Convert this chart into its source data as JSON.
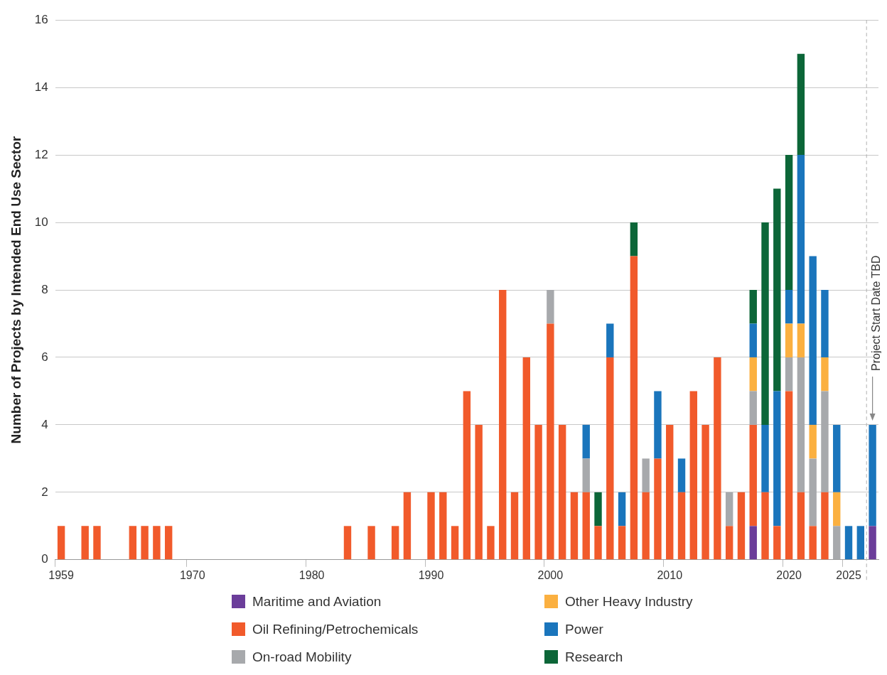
{
  "chart_data": {
    "type": "bar",
    "stacked": true,
    "ylabel": "Number of Projects by Intended End Use Sector",
    "categories": [
      "1959",
      null,
      null,
      null,
      null,
      null,
      null,
      null,
      null,
      null,
      null,
      "1970",
      null,
      null,
      null,
      null,
      null,
      null,
      null,
      null,
      null,
      "1980",
      null,
      null,
      null,
      null,
      null,
      null,
      null,
      null,
      null,
      "1990",
      null,
      null,
      null,
      null,
      null,
      null,
      null,
      null,
      null,
      "2000",
      null,
      null,
      null,
      null,
      null,
      null,
      null,
      null,
      null,
      "2010",
      null,
      null,
      null,
      null,
      null,
      null,
      null,
      null,
      null,
      "2020",
      null,
      null,
      null,
      null,
      "2025",
      null,
      null
    ],
    "ylim": [
      0,
      16
    ],
    "yticks": [
      0,
      2,
      4,
      6,
      8,
      10,
      12,
      14,
      16
    ],
    "grid": "y",
    "legend": "bottom",
    "annotations": [
      "Project Start Date TBD"
    ],
    "series": [
      {
        "name": "Maritime and Aviation",
        "color": "#6b3d9a",
        "values": [
          0,
          0,
          0,
          0,
          0,
          0,
          0,
          0,
          0,
          0,
          0,
          0,
          0,
          0,
          0,
          0,
          0,
          0,
          0,
          0,
          0,
          0,
          0,
          0,
          0,
          0,
          0,
          0,
          0,
          0,
          0,
          0,
          0,
          0,
          0,
          0,
          0,
          0,
          0,
          0,
          0,
          0,
          0,
          0,
          0,
          0,
          0,
          0,
          0,
          0,
          0,
          0,
          0,
          0,
          0,
          0,
          0,
          0,
          1,
          0,
          0,
          0,
          0,
          0,
          0,
          0,
          0,
          0,
          1
        ]
      },
      {
        "name": "Oil Refining/Petrochemicals",
        "color": "#f15a2b",
        "values": [
          1,
          0,
          1,
          1,
          0,
          0,
          1,
          1,
          1,
          1,
          0,
          0,
          0,
          0,
          0,
          0,
          0,
          0,
          0,
          0,
          0,
          0,
          0,
          0,
          1,
          0,
          1,
          0,
          1,
          2,
          0,
          2,
          2,
          1,
          5,
          4,
          1,
          8,
          2,
          6,
          4,
          7,
          4,
          2,
          2,
          1,
          6,
          1,
          9,
          2,
          3,
          4,
          2,
          5,
          4,
          6,
          1,
          2,
          3,
          2,
          1,
          5,
          2,
          1,
          2,
          0,
          0,
          0,
          0
        ]
      },
      {
        "name": "On-road Mobility",
        "color": "#a7a9ac",
        "values": [
          0,
          0,
          0,
          0,
          0,
          0,
          0,
          0,
          0,
          0,
          0,
          0,
          0,
          0,
          0,
          0,
          0,
          0,
          0,
          0,
          0,
          0,
          0,
          0,
          0,
          0,
          0,
          0,
          0,
          0,
          0,
          0,
          0,
          0,
          0,
          0,
          0,
          0,
          0,
          0,
          0,
          1,
          0,
          0,
          1,
          0,
          0,
          0,
          0,
          1,
          0,
          0,
          0,
          0,
          0,
          0,
          1,
          0,
          1,
          0,
          0,
          1,
          4,
          2,
          3,
          1,
          0,
          0,
          0
        ]
      },
      {
        "name": "Other Heavy Industry",
        "color": "#fbb040",
        "values": [
          0,
          0,
          0,
          0,
          0,
          0,
          0,
          0,
          0,
          0,
          0,
          0,
          0,
          0,
          0,
          0,
          0,
          0,
          0,
          0,
          0,
          0,
          0,
          0,
          0,
          0,
          0,
          0,
          0,
          0,
          0,
          0,
          0,
          0,
          0,
          0,
          0,
          0,
          0,
          0,
          0,
          0,
          0,
          0,
          0,
          0,
          0,
          0,
          0,
          0,
          0,
          0,
          0,
          0,
          0,
          0,
          0,
          0,
          1,
          0,
          0,
          1,
          1,
          1,
          1,
          1,
          0,
          0,
          0
        ]
      },
      {
        "name": "Power",
        "color": "#1a75bc",
        "values": [
          0,
          0,
          0,
          0,
          0,
          0,
          0,
          0,
          0,
          0,
          0,
          0,
          0,
          0,
          0,
          0,
          0,
          0,
          0,
          0,
          0,
          0,
          0,
          0,
          0,
          0,
          0,
          0,
          0,
          0,
          0,
          0,
          0,
          0,
          0,
          0,
          0,
          0,
          0,
          0,
          0,
          0,
          0,
          0,
          1,
          0,
          1,
          1,
          0,
          0,
          2,
          0,
          1,
          0,
          0,
          0,
          0,
          0,
          1,
          2,
          4,
          1,
          5,
          5,
          2,
          2,
          1,
          1,
          3
        ]
      },
      {
        "name": "Research",
        "color": "#0c6638",
        "values": [
          0,
          0,
          0,
          0,
          0,
          0,
          0,
          0,
          0,
          0,
          0,
          0,
          0,
          0,
          0,
          0,
          0,
          0,
          0,
          0,
          0,
          0,
          0,
          0,
          0,
          0,
          0,
          0,
          0,
          0,
          0,
          0,
          0,
          0,
          0,
          0,
          0,
          0,
          0,
          0,
          0,
          0,
          0,
          0,
          0,
          1,
          0,
          0,
          1,
          0,
          0,
          0,
          0,
          0,
          0,
          0,
          0,
          0,
          1,
          6,
          6,
          4,
          3,
          0,
          0,
          0,
          0,
          0,
          0
        ]
      }
    ]
  }
}
